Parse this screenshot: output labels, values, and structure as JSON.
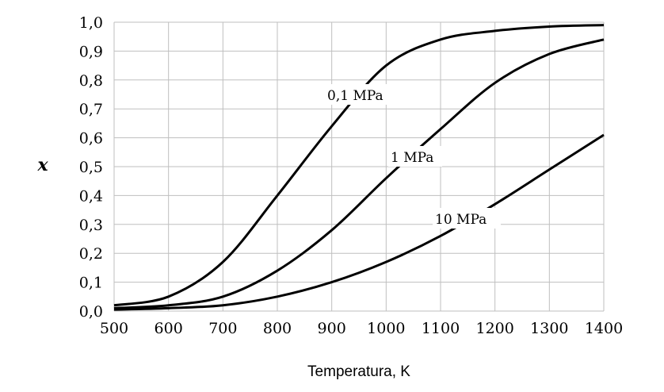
{
  "chart_data": {
    "type": "line",
    "title": "",
    "xlabel": "Temperatura, K",
    "ylabel": "x",
    "xlim": [
      500,
      1400
    ],
    "ylim": [
      0,
      1.0
    ],
    "grid": true,
    "x_ticks": [
      "500",
      "600",
      "700",
      "800",
      "900",
      "1000",
      "1100",
      "1200",
      "1300",
      "1400"
    ],
    "y_ticks": [
      "0,0",
      "0,1",
      "0,2",
      "0,3",
      "0,4",
      "0,5",
      "0,6",
      "0,7",
      "0,8",
      "0,9",
      "1,0"
    ],
    "x": [
      500,
      600,
      700,
      800,
      900,
      1000,
      1100,
      1200,
      1300,
      1400
    ],
    "series": [
      {
        "name": "0,1 MPa",
        "values": [
          0.02,
          0.05,
          0.17,
          0.4,
          0.64,
          0.85,
          0.94,
          0.97,
          0.985,
          0.99
        ]
      },
      {
        "name": "1 MPa",
        "values": [
          0.01,
          0.02,
          0.05,
          0.14,
          0.28,
          0.46,
          0.63,
          0.79,
          0.89,
          0.94
        ]
      },
      {
        "name": "10 MPa",
        "values": [
          0.005,
          0.01,
          0.02,
          0.05,
          0.1,
          0.17,
          0.26,
          0.37,
          0.49,
          0.61
        ]
      }
    ],
    "line_color": "#000000",
    "grid_color": "#bfbfbf"
  }
}
